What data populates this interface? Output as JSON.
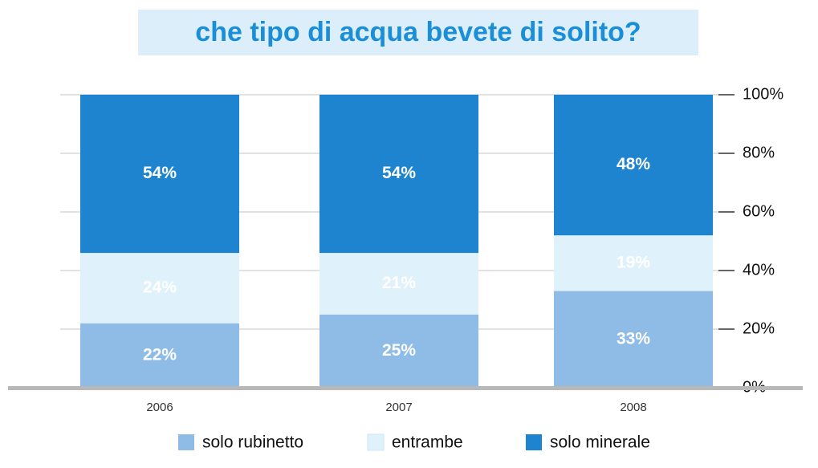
{
  "chart_data": {
    "type": "stacked_bar",
    "title": "che tipo di acqua bevete di solito?",
    "categories": [
      "2006",
      "2007",
      "2008"
    ],
    "series": [
      {
        "name": "solo rubinetto",
        "color": "#8fbce6",
        "values": [
          22,
          25,
          33
        ],
        "value_labels": [
          "22%",
          "25%",
          "33%"
        ]
      },
      {
        "name": "entrambe",
        "color": "#dff1fb",
        "values": [
          24,
          21,
          19
        ],
        "value_labels": [
          "24%",
          "21%",
          "19%"
        ]
      },
      {
        "name": "solo minerale",
        "color": "#1f84d0",
        "values": [
          54,
          54,
          48
        ],
        "value_labels": [
          "54%",
          "54%",
          "48%"
        ]
      }
    ],
    "ylim": [
      0,
      100
    ],
    "yticks": [
      {
        "value": 0,
        "label": "0%"
      },
      {
        "value": 20,
        "label": "20%"
      },
      {
        "value": 40,
        "label": "40%"
      },
      {
        "value": 60,
        "label": "60%"
      },
      {
        "value": 80,
        "label": "80%"
      },
      {
        "value": 100,
        "label": "100%"
      }
    ],
    "grid": true
  }
}
